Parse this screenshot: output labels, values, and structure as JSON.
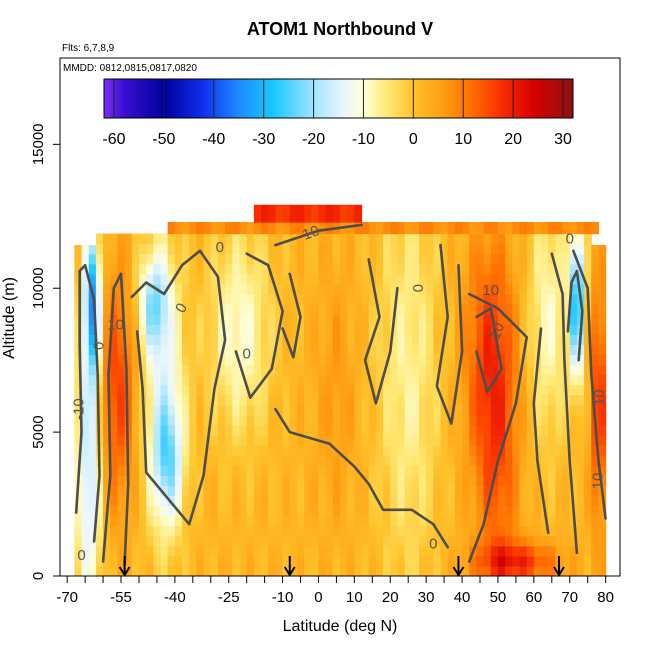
{
  "chart_data": {
    "type": "heatmap",
    "title": "ATOM1 Northbound V",
    "annotations": [
      "Flts: 6,7,8,9",
      "MMDD: 0812,0815,0817,0820"
    ],
    "xlabel": "Latitude (deg N)",
    "ylabel": "Altitude (m)",
    "xlim": [
      -72,
      84
    ],
    "ylim": [
      0,
      18000
    ],
    "x_ticks": [
      -70,
      -55,
      -40,
      -25,
      -10,
      0,
      10,
      20,
      30,
      40,
      50,
      60,
      70,
      80
    ],
    "y_ticks": [
      0,
      5000,
      10000,
      15000
    ],
    "colorbar": {
      "range": [
        -62,
        32
      ],
      "ticks": [
        -60,
        -50,
        -40,
        -30,
        -20,
        -10,
        0,
        10,
        20,
        30
      ],
      "stops": [
        {
          "v": -62,
          "c": "#7b2ff7"
        },
        {
          "v": -58,
          "c": "#3a0fd0"
        },
        {
          "v": -50,
          "c": "#00009c"
        },
        {
          "v": -42,
          "c": "#1030ee"
        },
        {
          "v": -35,
          "c": "#1c8cff"
        },
        {
          "v": -28,
          "c": "#18c8ff"
        },
        {
          "v": -20,
          "c": "#a0e4ff"
        },
        {
          "v": -14,
          "c": "#eaf6ff"
        },
        {
          "v": -10,
          "c": "#ffffd6"
        },
        {
          "v": -5,
          "c": "#ffe873"
        },
        {
          "v": 0,
          "c": "#ffc22a"
        },
        {
          "v": 6,
          "c": "#ff9d12"
        },
        {
          "v": 12,
          "c": "#ff6a00"
        },
        {
          "v": 18,
          "c": "#f82b00"
        },
        {
          "v": 24,
          "c": "#d80000"
        },
        {
          "v": 32,
          "c": "#8c1010"
        }
      ]
    },
    "data_extent": {
      "x": [
        -68,
        80
      ],
      "y": [
        0,
        11500
      ]
    },
    "data_extent_top": {
      "x": [
        -63,
        76
      ],
      "y_top": 11900
    },
    "top_band": {
      "x": [
        -42,
        78
      ],
      "y": [
        11900,
        12300
      ],
      "value": 8
    },
    "top_strip": {
      "x": [
        -18,
        12
      ],
      "y": [
        12300,
        12900
      ],
      "value": 18
    },
    "features": [
      {
        "x": -63,
        "y": 9500,
        "sx": 1.6,
        "sy": 1800,
        "value": -32
      },
      {
        "x": -64,
        "y": 3500,
        "sx": 2.5,
        "sy": 3500,
        "value": -18
      },
      {
        "x": -56,
        "y": 6500,
        "sx": 3.5,
        "sy": 2800,
        "value": 16
      },
      {
        "x": -46,
        "y": 9500,
        "sx": 3.0,
        "sy": 1200,
        "value": -16
      },
      {
        "x": -42,
        "y": 4000,
        "sx": 3.0,
        "sy": 1500,
        "value": -15
      },
      {
        "x": -43,
        "y": 6500,
        "sx": 4.0,
        "sy": 3500,
        "value": -12
      },
      {
        "x": -22,
        "y": 8500,
        "sx": 6.0,
        "sy": 2500,
        "value": -10
      },
      {
        "x": 5,
        "y": 6500,
        "sx": 4.0,
        "sy": 3000,
        "value": 6
      },
      {
        "x": 25,
        "y": 7000,
        "sx": 6.0,
        "sy": 5000,
        "value": -7
      },
      {
        "x": 48,
        "y": 7500,
        "sx": 5.0,
        "sy": 3000,
        "value": 17
      },
      {
        "x": 50,
        "y": 3000,
        "sx": 4.0,
        "sy": 3000,
        "value": 10
      },
      {
        "x": 55,
        "y": 500,
        "sx": 8.0,
        "sy": 500,
        "value": 18
      },
      {
        "x": 72,
        "y": 9500,
        "sx": 1.5,
        "sy": 1800,
        "value": -30
      },
      {
        "x": 64,
        "y": 9000,
        "sx": 4.0,
        "sy": 3000,
        "value": -9
      },
      {
        "x": 78,
        "y": 6000,
        "sx": 1.5,
        "sy": 3000,
        "value": 18
      }
    ],
    "base_value": 2,
    "contours": [
      {
        "level": "-10",
        "points": [
          [
            -67.5,
            2200
          ],
          [
            -66,
            5000
          ],
          [
            -66.5,
            8000
          ],
          [
            -66.5,
            10600
          ],
          [
            -65,
            10800
          ],
          [
            -62.5,
            9600
          ],
          [
            -61.5,
            7000
          ],
          [
            -61,
            3500
          ],
          [
            -62.5,
            1200
          ]
        ]
      },
      {
        "level": "0",
        "points": [
          [
            -60,
            500
          ],
          [
            -58,
            3500
          ],
          [
            -58.5,
            7000
          ],
          [
            -57,
            10000
          ],
          [
            -55,
            10500
          ],
          [
            -53.5,
            7200
          ],
          [
            -53,
            3200
          ],
          [
            -54,
            400
          ]
        ]
      },
      {
        "level": "0",
        "points": [
          [
            -52,
            9700
          ],
          [
            -48,
            10200
          ],
          [
            -43,
            9800
          ],
          [
            -38,
            10800
          ],
          [
            -33,
            11300
          ],
          [
            -28,
            10400
          ],
          [
            -26,
            8200
          ],
          [
            -29,
            6500
          ],
          [
            -32,
            3500
          ],
          [
            -36,
            1800
          ],
          [
            -42,
            2700
          ],
          [
            -48,
            3600
          ],
          [
            -49,
            6500
          ],
          [
            -50.5,
            8500
          ]
        ]
      },
      {
        "level": "0",
        "points": [
          [
            -20,
            11200
          ],
          [
            -14,
            10800
          ],
          [
            -10,
            9200
          ],
          [
            -13,
            7200
          ],
          [
            -19,
            6200
          ],
          [
            -23,
            7800
          ]
        ]
      },
      {
        "level": "0",
        "points": [
          [
            -12,
            5800
          ],
          [
            -8,
            5000
          ],
          [
            3,
            4600
          ],
          [
            10,
            3800
          ],
          [
            14,
            3200
          ],
          [
            18,
            2300
          ],
          [
            26,
            2300
          ],
          [
            32,
            1800
          ],
          [
            36,
            1000
          ]
        ]
      },
      {
        "level": "0",
        "points": [
          [
            14,
            11000
          ],
          [
            17,
            9000
          ],
          [
            13,
            7500
          ],
          [
            16,
            6000
          ],
          [
            20,
            7800
          ],
          [
            22,
            10000
          ]
        ]
      },
      {
        "level": "0",
        "points": [
          [
            34,
            11500
          ],
          [
            36,
            9000
          ],
          [
            33,
            6600
          ],
          [
            37,
            5300
          ],
          [
            40,
            7800
          ],
          [
            39,
            10800
          ]
        ]
      },
      {
        "level": "10",
        "points": [
          [
            -12,
            11500
          ],
          [
            0,
            12000
          ],
          [
            12,
            12200
          ]
        ]
      },
      {
        "level": "10",
        "points": [
          [
            42,
            9800
          ],
          [
            50,
            9300
          ],
          [
            58,
            8300
          ],
          [
            55,
            6000
          ],
          [
            50,
            4000
          ],
          [
            46,
            1800
          ],
          [
            42,
            500
          ]
        ]
      },
      {
        "level": "10",
        "points": [
          [
            44,
            9000
          ],
          [
            48,
            9300
          ],
          [
            51,
            7200
          ],
          [
            47,
            6400
          ],
          [
            44,
            7800
          ]
        ]
      },
      {
        "level": "10",
        "points": [
          [
            62,
            8600
          ],
          [
            60,
            6000
          ],
          [
            61,
            4000
          ],
          [
            64,
            1500
          ]
        ]
      },
      {
        "level": "0",
        "points": [
          [
            65,
            11200
          ],
          [
            68,
            9800
          ],
          [
            68.5,
            7500
          ],
          [
            70,
            4000
          ],
          [
            72,
            800
          ]
        ]
      },
      {
        "level": "0",
        "points": [
          [
            71,
            11300
          ],
          [
            75,
            10000
          ],
          [
            76,
            7000
          ],
          [
            78,
            4000
          ],
          [
            80,
            2000
          ]
        ]
      },
      {
        "level": "-10",
        "points": [
          [
            69.5,
            8500
          ],
          [
            70.5,
            10200
          ],
          [
            72,
            10600
          ],
          [
            73.5,
            9200
          ],
          [
            72.5,
            7500
          ]
        ]
      },
      {
        "level": "0",
        "points": [
          [
            -8,
            10500
          ],
          [
            -5,
            9000
          ],
          [
            -7,
            7600
          ],
          [
            -10,
            8600
          ]
        ]
      }
    ],
    "contour_labels": [
      {
        "text": "0",
        "x": -61,
        "y": 8000,
        "rot": -90
      },
      {
        "text": "-10",
        "x": -66.5,
        "y": 5800,
        "rot": -90
      },
      {
        "text": "10",
        "x": -56.5,
        "y": 8700,
        "rot": 0
      },
      {
        "text": "0",
        "x": -66,
        "y": 700,
        "rot": 0
      },
      {
        "text": "0",
        "x": -27.5,
        "y": 11400,
        "rot": 0
      },
      {
        "text": "0",
        "x": -38,
        "y": 9300,
        "rot": -60
      },
      {
        "text": "0",
        "x": -20,
        "y": 7700,
        "rot": 0
      },
      {
        "text": "10",
        "x": -2,
        "y": 11900,
        "rot": -20
      },
      {
        "text": "0",
        "x": 28,
        "y": 10000,
        "rot": -90
      },
      {
        "text": "10",
        "x": 48,
        "y": 9900,
        "rot": 0
      },
      {
        "text": "10",
        "x": 50,
        "y": 8500,
        "rot": -70
      },
      {
        "text": "0",
        "x": 32,
        "y": 1100,
        "rot": 0
      },
      {
        "text": "0",
        "x": 70,
        "y": 11700,
        "rot": 0
      },
      {
        "text": "10",
        "x": 78,
        "y": 3300,
        "rot": -90
      },
      {
        "text": "10",
        "x": 78.5,
        "y": 6200,
        "rot": -90
      }
    ],
    "flight_arrows": [
      -54,
      -8,
      39,
      67
    ]
  }
}
